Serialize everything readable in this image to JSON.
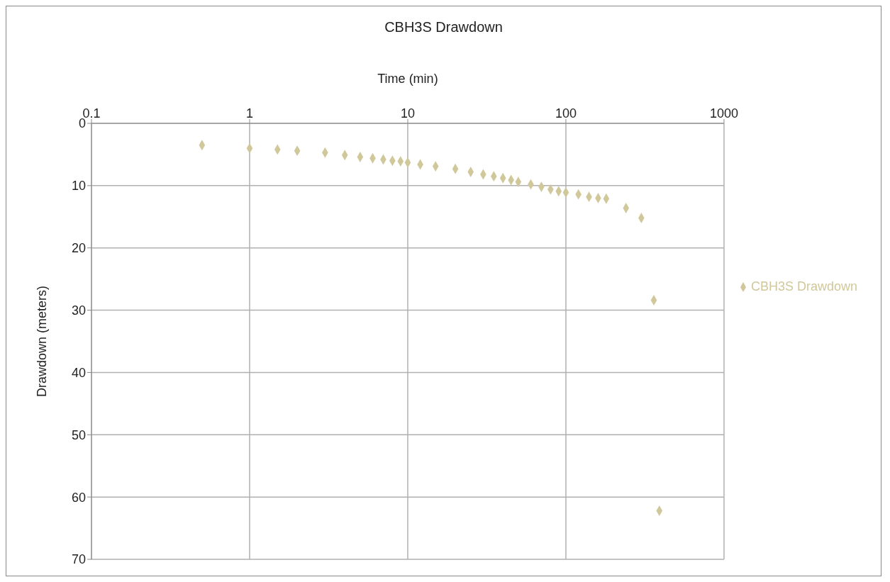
{
  "chart_data": {
    "type": "scatter",
    "title": "CBH3S Drawdown",
    "xlabel": "Time (min)",
    "ylabel": "Drawdown (meters)",
    "log": "x",
    "xlim": [
      0.1,
      1000
    ],
    "xticks": [
      0.1,
      1,
      10,
      100,
      1000
    ],
    "ylim": [
      70,
      0
    ],
    "yticks": [
      0,
      10,
      20,
      30,
      40,
      50,
      60,
      70
    ],
    "grid": true,
    "legend": "right",
    "marker": "diamond",
    "x": [
      0.5,
      1,
      1.5,
      2,
      3,
      4,
      5,
      6,
      7,
      8,
      9,
      10,
      12,
      15,
      20,
      25,
      30,
      35,
      40,
      45,
      50,
      60,
      70,
      80,
      90,
      100,
      120,
      140,
      160,
      180,
      240,
      300,
      360,
      390
    ],
    "series": [
      {
        "name": "CBH3S Drawdown",
        "color": "#d0c89a",
        "values": [
          3.5,
          4,
          4.2,
          4.4,
          4.7,
          5.1,
          5.4,
          5.6,
          5.8,
          6,
          6.1,
          6.3,
          6.6,
          6.9,
          7.3,
          7.8,
          8.2,
          8.5,
          8.8,
          9.1,
          9.4,
          9.8,
          10.2,
          10.6,
          10.9,
          11.1,
          11.4,
          11.8,
          12,
          12.1,
          13.6,
          15.2,
          28.4,
          62.2
        ]
      }
    ]
  }
}
